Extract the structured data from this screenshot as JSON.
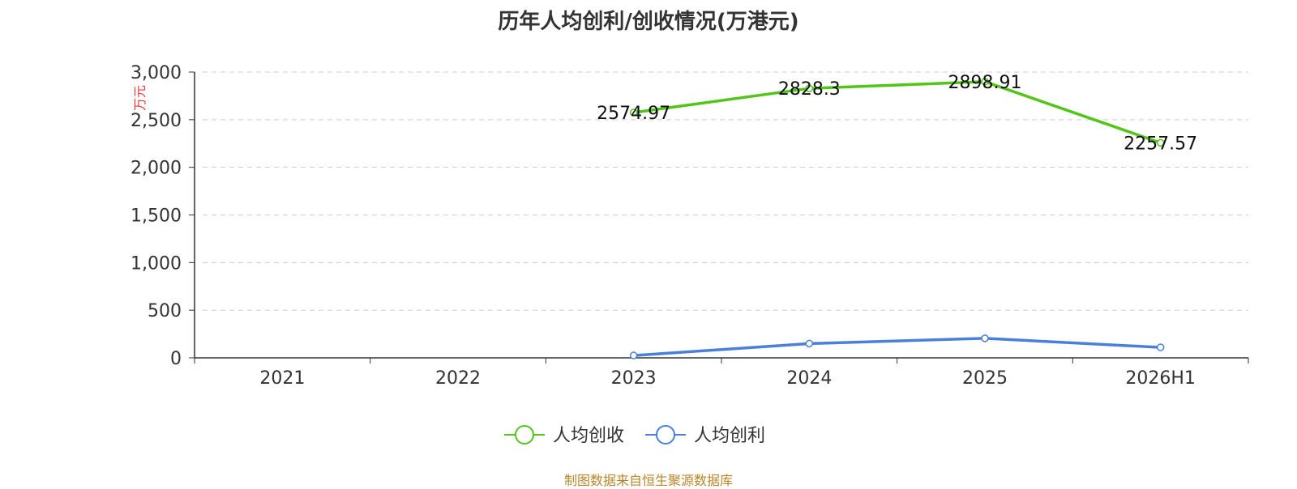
{
  "title": "历年人均创利/创收情况(万港元)",
  "source_note": "制图数据来自恒生聚源数据库",
  "chart_data": {
    "type": "line",
    "title": "历年人均创利/创收情况(万港元)",
    "ylabel": "万元",
    "ylim": [
      0,
      3000
    ],
    "yticks": [
      0,
      500,
      1000,
      1500,
      2000,
      2500,
      3000
    ],
    "ytick_labels": [
      "0",
      "500",
      "1,000",
      "1,500",
      "2,000",
      "2,500",
      "3,000"
    ],
    "categories": [
      "2021",
      "2022",
      "2023",
      "2024",
      "2025",
      "2026H1"
    ],
    "grid": true,
    "legend_position": "bottom",
    "series": [
      {
        "name": "人均创收",
        "color": "#52c41a",
        "values": [
          null,
          null,
          2574.97,
          2828.3,
          2898.91,
          2257.57
        ],
        "labels": [
          "",
          "",
          "2574.97",
          "2828.3",
          "2898.91",
          "2257.57"
        ]
      },
      {
        "name": "人均创利",
        "color": "#4a7fdb",
        "values": [
          null,
          null,
          25,
          150,
          205,
          110
        ],
        "labels": [
          "",
          "",
          "",
          "",
          "",
          ""
        ]
      }
    ]
  },
  "colors": {
    "unit_label": "#e8393a",
    "source_note": "#b8862b",
    "axis": "#333333",
    "grid": "#cccccc"
  }
}
